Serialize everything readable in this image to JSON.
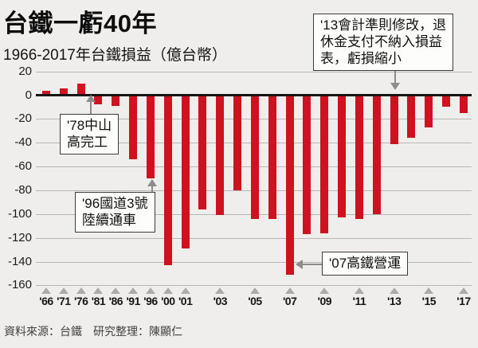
{
  "chart_data": {
    "type": "bar",
    "title": "台鐵一虧40年",
    "subtitle": "1966-2017年台鐵損益（億台幣）",
    "unit": "億台幣",
    "bar_color": "#ce1220",
    "ylim": [
      -160,
      20
    ],
    "grid": true,
    "yticks": [
      20,
      0,
      -20,
      -40,
      -60,
      -80,
      -100,
      -120,
      -140,
      -160
    ],
    "x": [
      1966,
      1971,
      1976,
      1981,
      1986,
      1991,
      1996,
      2000,
      2001,
      2002,
      2003,
      2004,
      2005,
      2006,
      2007,
      2008,
      2009,
      2010,
      2011,
      2012,
      2013,
      2014,
      2015,
      2016,
      2017
    ],
    "values": [
      4,
      6,
      10,
      -8,
      -9,
      -54,
      -70,
      -143,
      -129,
      -96,
      -101,
      -80,
      -104,
      -104,
      -151,
      -117,
      -116,
      -103,
      -104,
      -100,
      -41,
      -36,
      -27,
      -10,
      -15
    ],
    "xticks": [
      {
        "year": 1966,
        "label": "'66"
      },
      {
        "year": 1971,
        "label": "'71"
      },
      {
        "year": 1976,
        "label": "'76"
      },
      {
        "year": 1981,
        "label": "'81"
      },
      {
        "year": 1986,
        "label": "'86"
      },
      {
        "year": 1991,
        "label": "'91"
      },
      {
        "year": 1996,
        "label": "'96"
      },
      {
        "year": 2000,
        "label": "'00"
      },
      {
        "year": 2001,
        "label": "'01"
      },
      {
        "year": 2003,
        "label": "'03"
      },
      {
        "year": 2005,
        "label": "'05"
      },
      {
        "year": 2007,
        "label": "'07"
      },
      {
        "year": 2009,
        "label": "'09"
      },
      {
        "year": 2011,
        "label": "'11"
      },
      {
        "year": 2013,
        "label": "'13"
      },
      {
        "year": 2015,
        "label": "'15"
      },
      {
        "year": 2017,
        "label": "'17"
      }
    ],
    "annotations": [
      {
        "text": "'78中山\n高完工"
      },
      {
        "text": "'96國道3號\n陸續通車"
      },
      {
        "text": "'07高鐵營運"
      },
      {
        "text": "'13會計準則修改，退\n休金支付不納入損益\n表，虧損縮小"
      }
    ]
  },
  "footer": {
    "source": "資料來源：台鐵",
    "credit": "研究整理：陳顯仁"
  }
}
